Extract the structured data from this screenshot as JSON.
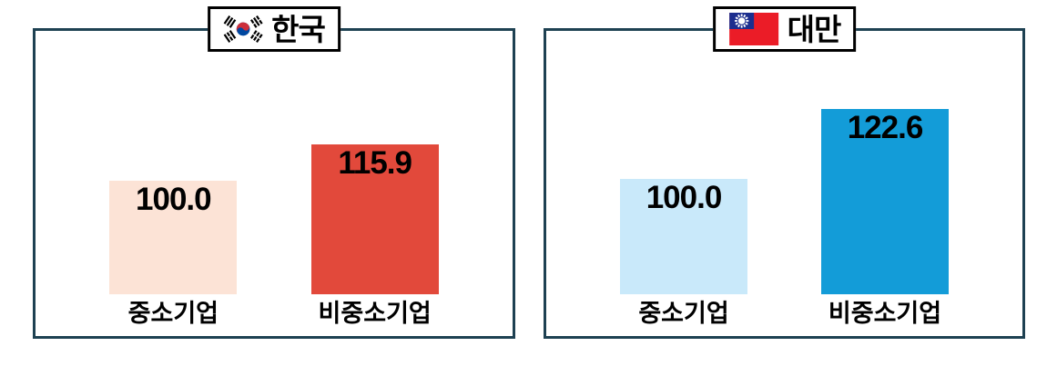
{
  "chart_data": [
    {
      "type": "bar",
      "title": "한국",
      "flag": "South Korea",
      "categories": [
        "중소기업",
        "비중소기업"
      ],
      "values": [
        100.0,
        115.9
      ],
      "value_labels": [
        "100.0",
        "115.9"
      ],
      "bar_colors": [
        "#fce3d6",
        "#e2493b"
      ],
      "frame_color": "#1e4152",
      "ylim": [
        50,
        168
      ],
      "grid": false,
      "legend": false,
      "value_label_position": "inside-top"
    },
    {
      "type": "bar",
      "title": "대만",
      "flag": "Taiwan",
      "categories": [
        "중소기업",
        "비중소기업"
      ],
      "values": [
        100.0,
        122.6
      ],
      "value_labels": [
        "100.0",
        "122.6"
      ],
      "bar_colors": [
        "#c9e9fa",
        "#139cd8"
      ],
      "frame_color": "#1e4152",
      "ylim": [
        63,
        149
      ],
      "grid": false,
      "legend": false,
      "value_label_position": "inside-top"
    }
  ],
  "colors": {
    "background": "#ffffff",
    "badge_border": "#000000",
    "text": "#000000",
    "frame": "#1e4152",
    "korea_sme_bar": "#fce3d6",
    "korea_nonsme_bar": "#e2493b",
    "taiwan_sme_bar": "#c9e9fa",
    "taiwan_nonsme_bar": "#139cd8"
  }
}
